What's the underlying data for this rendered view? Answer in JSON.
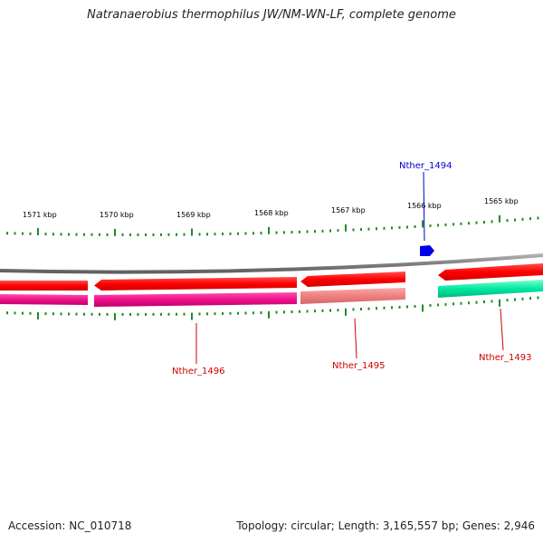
{
  "title": "Natranaerobius thermophilus JW/NM-WN-LF, complete genome",
  "footer": {
    "accession": "Accession: NC_010718",
    "summary": "Topology: circular; Length: 3,165,557 bp; Genes: 2,946"
  },
  "ruler": {
    "labels": [
      "1571 kbp",
      "1570 kbp",
      "1569 kbp",
      "1568 kbp",
      "1567 kbp",
      "1566 kbp",
      "1565 kbp"
    ]
  },
  "features": [
    {
      "id": "Nther_1496",
      "label": "Nther_1496",
      "color": "#cc0000"
    },
    {
      "id": "Nther_1495",
      "label": "Nther_1495",
      "color": "#cc0000"
    },
    {
      "id": "Nther_1494",
      "label": "Nther_1494",
      "color": "#0000cc"
    },
    {
      "id": "Nther_1493",
      "label": "Nther_1493",
      "color": "#cc0000"
    }
  ],
  "colors": {
    "backbone": "#808080",
    "cds": "#ff0000",
    "gene_pink": "#ee1188",
    "gene_salmon": "#f08080",
    "gene_green": "#00e8a0",
    "tick": "#228b22",
    "small_feature": "#0000ee"
  }
}
